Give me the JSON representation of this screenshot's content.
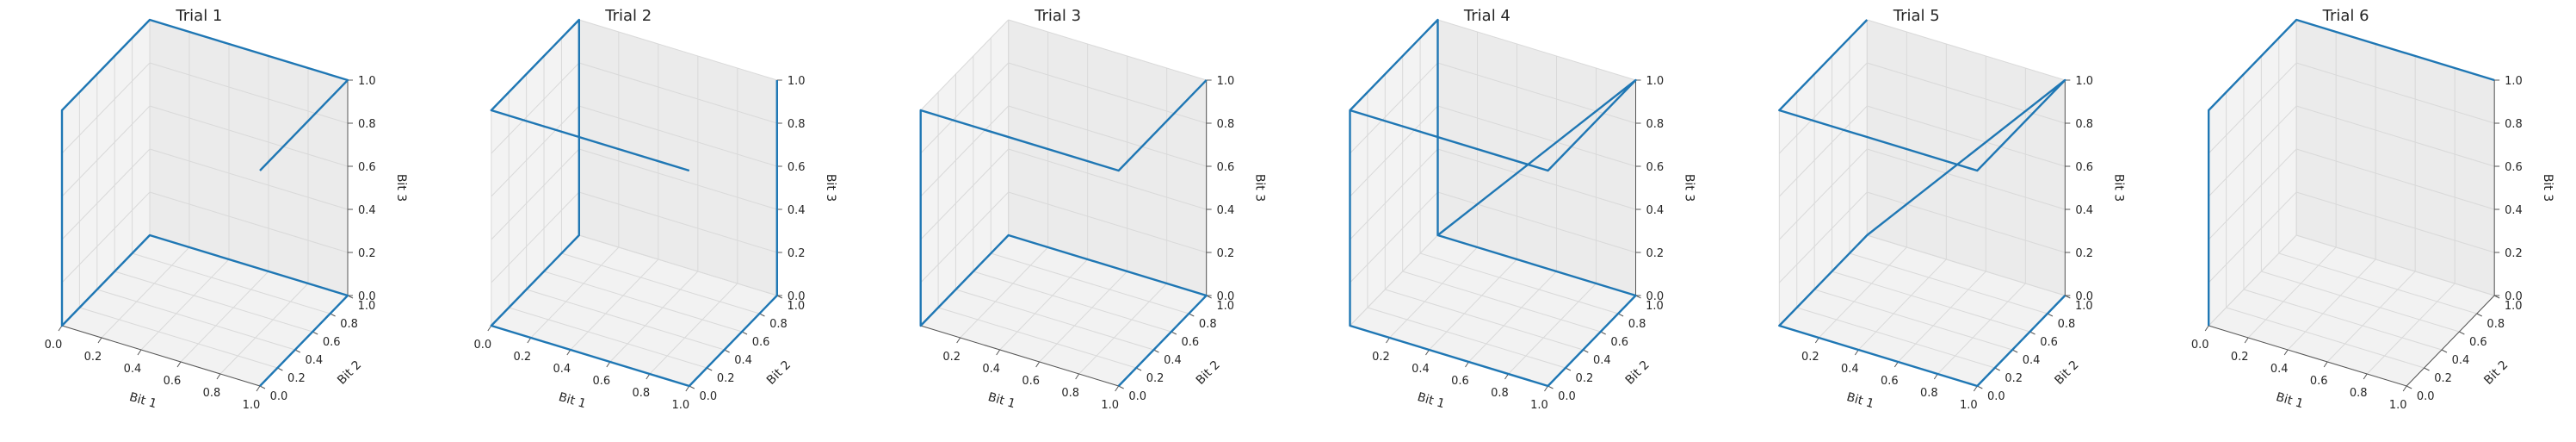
{
  "figure": {
    "background": "#ffffff",
    "line_color": "#1f77b4",
    "pane_color": "#f2f2f2",
    "grid_color": "#d9d9d9"
  },
  "chart_data": [
    {
      "type": "line3d",
      "title": "Trial 1",
      "xlabel": "Bit 1",
      "ylabel": "Bit 2",
      "zlabel": "Bit 3",
      "xlim": [
        0,
        1
      ],
      "ylim": [
        0,
        1
      ],
      "zlim": [
        0,
        1
      ],
      "x_ticks": [
        "0.0",
        "0.2",
        "0.4",
        "0.6",
        "0.8",
        "1.0"
      ],
      "y_ticks": [
        "0.0",
        "0.2",
        "0.4",
        "0.6",
        "0.8",
        "1.0"
      ],
      "z_ticks": [
        "0.0",
        "0.2",
        "0.4",
        "0.6",
        "0.8",
        "1.0"
      ],
      "series": [
        {
          "x": [
            1,
            1,
            0,
            0,
            0,
            0,
            1,
            1
          ],
          "y": [
            0,
            1,
            1,
            0,
            0,
            1,
            1,
            0
          ],
          "z": [
            0,
            0,
            0,
            0,
            1,
            1,
            1,
            1
          ]
        }
      ],
      "grid": true
    },
    {
      "type": "line3d",
      "title": "Trial 2",
      "xlabel": "Bit 1",
      "ylabel": "Bit 2",
      "zlabel": "Bit 3",
      "xlim": [
        0,
        1
      ],
      "ylim": [
        0,
        1
      ],
      "zlim": [
        0,
        1
      ],
      "x_ticks": [
        "0.0",
        "0.2",
        "0.4",
        "0.6",
        "0.8",
        "1.0"
      ],
      "y_ticks": [
        "0.0",
        "0.2",
        "0.4",
        "0.6",
        "0.8",
        "1.0"
      ],
      "z_ticks": [
        "0.0",
        "0.2",
        "0.4",
        "0.6",
        "0.8",
        "1.0"
      ],
      "series": [
        {
          "x": [
            1,
            1,
            1,
            0,
            0,
            0,
            0,
            1
          ],
          "y": [
            1,
            1,
            0,
            0,
            1,
            1,
            0,
            0
          ],
          "z": [
            1,
            0,
            0,
            0,
            0,
            1,
            1,
            1
          ]
        }
      ],
      "grid": true
    },
    {
      "type": "line3d",
      "title": "Trial 3",
      "xlabel": "Bit 1",
      "ylabel": "Bit 2",
      "zlabel": "Bit 3",
      "xlim": [
        0,
        1
      ],
      "ylim": [
        0,
        1
      ],
      "zlim": [
        0,
        1
      ],
      "x_ticks": [
        "0.2",
        "0.4",
        "0.6",
        "0.8",
        "1.0"
      ],
      "y_ticks": [
        "0.0",
        "0.2",
        "0.4",
        "0.6",
        "0.8",
        "1.0"
      ],
      "z_ticks": [
        "0.0",
        "0.2",
        "0.4",
        "0.6",
        "0.8",
        "1.0"
      ],
      "series": [
        {
          "x": [
            1,
            1,
            0,
            0,
            0,
            1,
            1
          ],
          "y": [
            0,
            1,
            1,
            0,
            0,
            0,
            1
          ],
          "z": [
            0,
            0,
            0,
            0,
            1,
            1,
            1
          ]
        }
      ],
      "grid": true
    },
    {
      "type": "line3d",
      "title": "Trial 4",
      "xlabel": "Bit 1",
      "ylabel": "Bit 2",
      "zlabel": "Bit 3",
      "xlim": [
        0,
        1
      ],
      "ylim": [
        0,
        1
      ],
      "zlim": [
        0,
        1
      ],
      "x_ticks": [
        "0.2",
        "0.4",
        "0.6",
        "0.8",
        "1.0"
      ],
      "y_ticks": [
        "0.0",
        "0.2",
        "0.4",
        "0.6",
        "0.8",
        "1.0"
      ],
      "z_ticks": [
        "0.0",
        "0.2",
        "0.4",
        "0.6",
        "0.8",
        "1.0"
      ],
      "series": [
        {
          "x": [
            0,
            1,
            1,
            0,
            0,
            0,
            0,
            1,
            1,
            0
          ],
          "y": [
            1,
            1,
            0,
            0,
            0,
            1,
            1,
            1,
            0,
            0
          ],
          "z": [
            0,
            0,
            0,
            0,
            1,
            1,
            0,
            1,
            1,
            1
          ]
        }
      ],
      "grid": true
    },
    {
      "type": "line3d",
      "title": "Trial 5",
      "xlabel": "Bit 1",
      "ylabel": "Bit 2",
      "zlabel": "Bit 3",
      "xlim": [
        0,
        1
      ],
      "ylim": [
        0,
        1
      ],
      "zlim": [
        0,
        1
      ],
      "x_ticks": [
        "0.2",
        "0.4",
        "0.6",
        "0.8",
        "1.0"
      ],
      "y_ticks": [
        "0.0",
        "0.2",
        "0.4",
        "0.6",
        "0.8",
        "1.0"
      ],
      "z_ticks": [
        "0.0",
        "0.2",
        "0.4",
        "0.6",
        "0.8",
        "1.0"
      ],
      "series": [
        {
          "x": [
            0,
            0,
            1,
            1,
            0,
            0,
            1,
            1
          ],
          "y": [
            1,
            0,
            0,
            1,
            1,
            0,
            0,
            1
          ],
          "z": [
            1,
            1,
            1,
            1,
            0,
            0,
            0,
            0
          ]
        }
      ],
      "grid": true
    },
    {
      "type": "line3d",
      "title": "Trial 6",
      "xlabel": "Bit 1",
      "ylabel": "Bit 2",
      "zlabel": "Bit 3",
      "xlim": [
        0,
        1
      ],
      "ylim": [
        0,
        1
      ],
      "zlim": [
        0,
        1
      ],
      "x_ticks": [
        "0.0",
        "0.2",
        "0.4",
        "0.6",
        "0.8",
        "1.0"
      ],
      "y_ticks": [
        "0.0",
        "0.2",
        "0.4",
        "0.6",
        "0.8",
        "1.0"
      ],
      "z_ticks": [
        "0.0",
        "0.2",
        "0.4",
        "0.6",
        "0.8",
        "1.0"
      ],
      "series": [
        {
          "x": [
            0,
            0,
            0,
            1
          ],
          "y": [
            0,
            0,
            1,
            1
          ],
          "z": [
            0,
            1,
            1,
            1
          ]
        }
      ],
      "grid": true
    }
  ]
}
